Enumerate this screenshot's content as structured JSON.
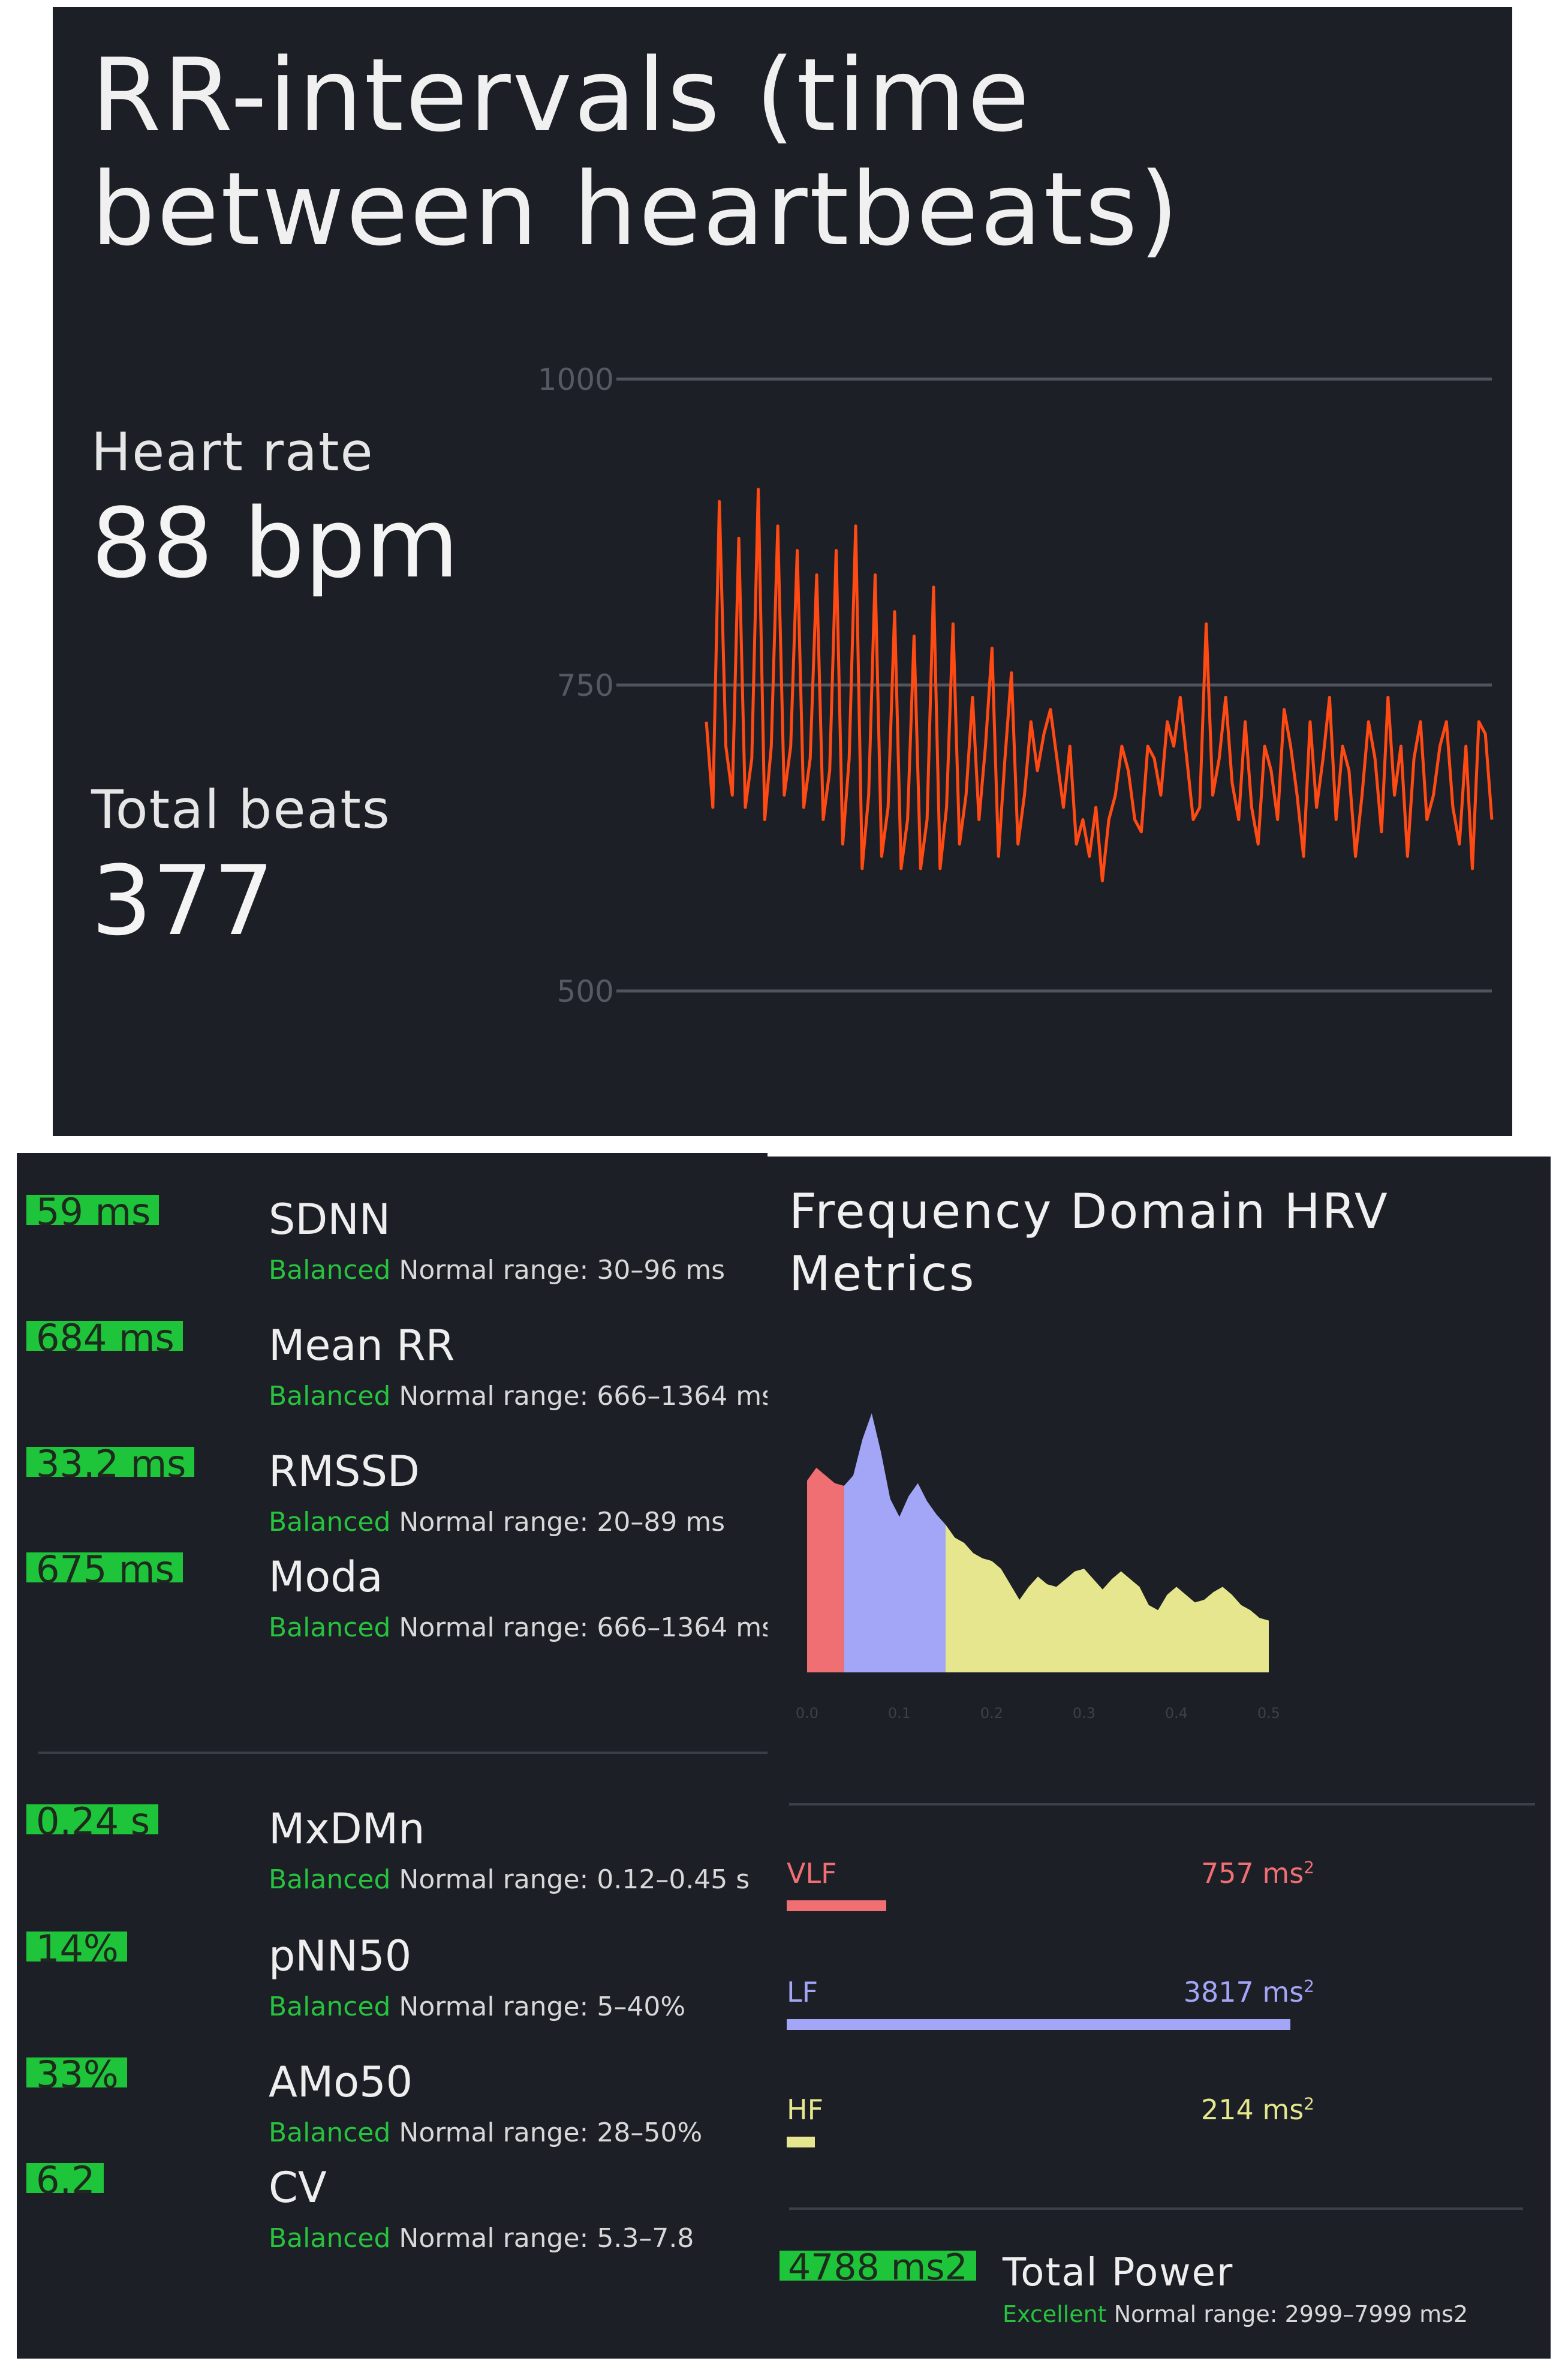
{
  "rr_panel": {
    "title": "RR-intervals (time between heartbeats)",
    "heart_rate_label": "Heart rate",
    "heart_rate_value": "88 bpm",
    "total_beats_label": "Total beats",
    "total_beats_value": "377",
    "line_color": "#ff4a14"
  },
  "chart_data": [
    {
      "type": "line",
      "ylim": [
        500,
        1000
      ],
      "yticks": [
        "1000",
        "750",
        "500"
      ],
      "series": [
        {
          "values": [
            720,
            650,
            900,
            700,
            660,
            870,
            650,
            690,
            910,
            640,
            700,
            880,
            660,
            700,
            860,
            650,
            690,
            840,
            640,
            680,
            860,
            620,
            690,
            880,
            600,
            660,
            840,
            610,
            650,
            810,
            600,
            640,
            790,
            600,
            640,
            830,
            600,
            650,
            800,
            620,
            660,
            740,
            640,
            700,
            780,
            610,
            690,
            760,
            620,
            660,
            720,
            680,
            710,
            730,
            690,
            650,
            700,
            620,
            640,
            610,
            650,
            590,
            640,
            660,
            700,
            680,
            640,
            630,
            700,
            690,
            660,
            720,
            700,
            740,
            690,
            640,
            650,
            800,
            660,
            690,
            740,
            670,
            640,
            720,
            650,
            620,
            700,
            680,
            640,
            730,
            700,
            660,
            610,
            720,
            650,
            690,
            740,
            640,
            700,
            680,
            610,
            660,
            720,
            690,
            630,
            740,
            660,
            700,
            610,
            690,
            720,
            640,
            660,
            700,
            720,
            650,
            620,
            700,
            600,
            720,
            710,
            640
          ]
        }
      ]
    },
    {
      "type": "area",
      "x_tick_labels": [
        "0.0",
        "0.1",
        "0.2",
        "0.3",
        "0.4",
        "0.5"
      ],
      "x": [
        0.0,
        0.01,
        0.02,
        0.03,
        0.04,
        0.05,
        0.06,
        0.07,
        0.08,
        0.09,
        0.1,
        0.11,
        0.12,
        0.13,
        0.14,
        0.15,
        0.16,
        0.17,
        0.18,
        0.19,
        0.2,
        0.21,
        0.22,
        0.23,
        0.24,
        0.25,
        0.26,
        0.27,
        0.28,
        0.29,
        0.3,
        0.31,
        0.32,
        0.33,
        0.34,
        0.35,
        0.36,
        0.37,
        0.38,
        0.39,
        0.4,
        0.41,
        0.42,
        0.43,
        0.44,
        0.45,
        0.46,
        0.47,
        0.48,
        0.49,
        0.5
      ],
      "y": [
        0.74,
        0.79,
        0.76,
        0.73,
        0.72,
        0.76,
        0.9,
        1.0,
        0.85,
        0.67,
        0.6,
        0.68,
        0.73,
        0.66,
        0.61,
        0.57,
        0.52,
        0.5,
        0.46,
        0.44,
        0.43,
        0.4,
        0.34,
        0.28,
        0.33,
        0.37,
        0.34,
        0.33,
        0.36,
        0.39,
        0.4,
        0.36,
        0.32,
        0.36,
        0.39,
        0.36,
        0.33,
        0.26,
        0.24,
        0.3,
        0.33,
        0.3,
        0.27,
        0.28,
        0.31,
        0.33,
        0.3,
        0.26,
        0.24,
        0.21,
        0.2
      ],
      "bands": [
        {
          "name": "VLF",
          "from": 0.0,
          "to": 0.04,
          "color": "#ef6f73"
        },
        {
          "name": "LF",
          "from": 0.04,
          "to": 0.15,
          "color": "#a3a6f7"
        },
        {
          "name": "HF",
          "from": 0.15,
          "to": 0.5,
          "color": "#e5e68d"
        }
      ]
    }
  ],
  "time_metrics": [
    {
      "value": "59 ms",
      "name": "SDNN",
      "status": "Balanced",
      "range": "Normal range: 30–96 ms"
    },
    {
      "value": "684 ms",
      "name": "Mean RR",
      "status": "Balanced",
      "range": "Normal range: 666–1364 ms"
    },
    {
      "value": "33.2 ms",
      "name": "RMSSD",
      "status": "Balanced",
      "range": "Normal range: 20–89 ms"
    },
    {
      "value": "675 ms",
      "name": "Moda",
      "status": "Balanced",
      "range": "Normal range: 666–1364 ms"
    }
  ],
  "other_metrics": [
    {
      "value": "0.24 s",
      "name": "MxDMn",
      "status": "Balanced",
      "range": "Normal range: 0.12–0.45 s"
    },
    {
      "value": "14%",
      "name": "pNN50",
      "status": "Balanced",
      "range": "Normal range: 5–40%"
    },
    {
      "value": "33%",
      "name": "AMo50",
      "status": "Balanced",
      "range": "Normal range: 28–50%"
    },
    {
      "value": "6.2",
      "name": "CV",
      "status": "Balanced",
      "range": "Normal range: 5.3–7.8"
    }
  ],
  "frequency": {
    "title": "Frequency Domain HRV Metrics",
    "bands": [
      {
        "name": "VLF",
        "value": "757 ms",
        "power": "2",
        "color": "#ef6f73",
        "share": 0.198
      },
      {
        "name": "LF",
        "value": "3817 ms",
        "power": "2",
        "color": "#a3a6f7",
        "share": 1.0
      },
      {
        "name": "HF",
        "value": "214 ms",
        "power": "2",
        "color": "#e5e68d",
        "share": 0.056
      }
    ],
    "total_power": {
      "value": "4788 ms2",
      "label": "Total Power",
      "status": "Excellent",
      "range": "Normal range: 2999–7999 ms2"
    }
  }
}
